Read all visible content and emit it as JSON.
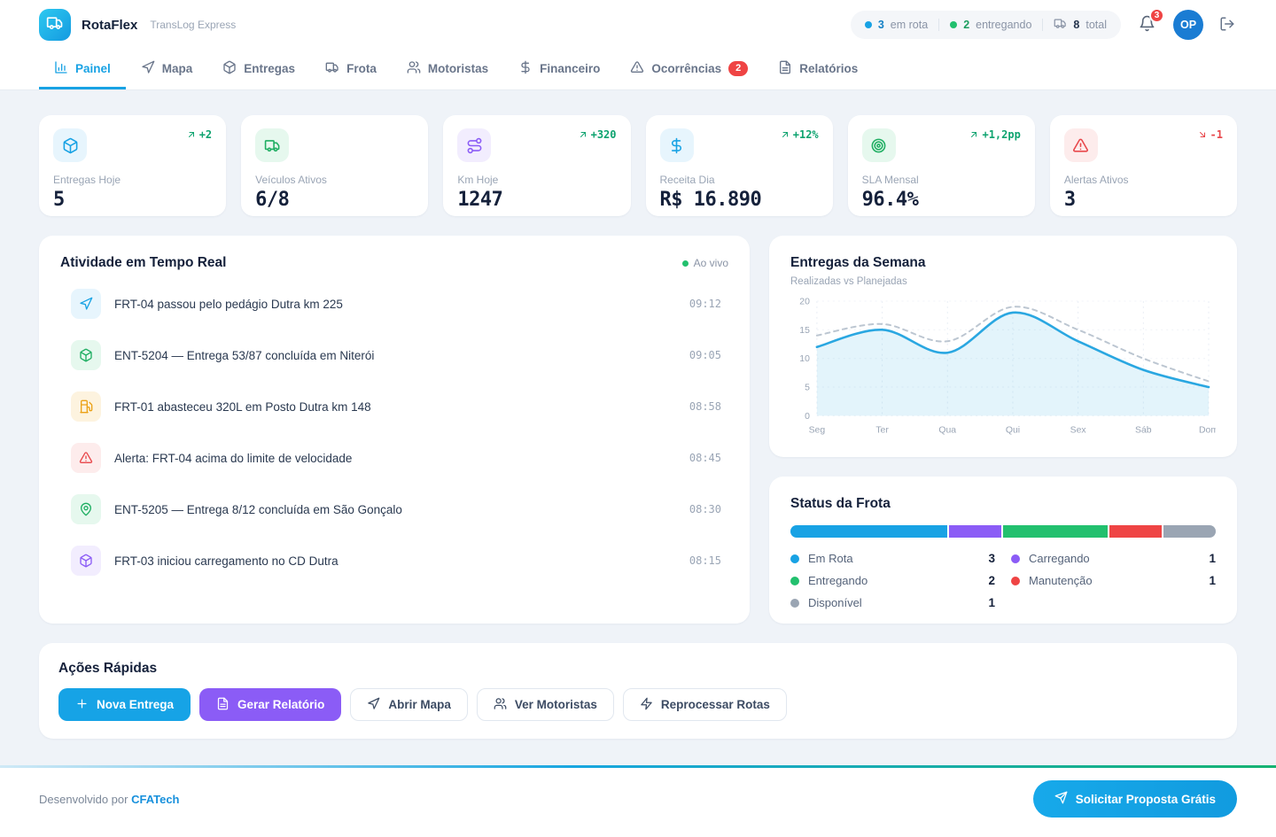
{
  "brand": {
    "name": "RotaFlex",
    "subtitle": "TransLog Express",
    "logo_icon": "truck-icon"
  },
  "header": {
    "status_pill": [
      {
        "dot_color": "#18a2e4",
        "value": "3",
        "label": "em rota",
        "value_color": "#1581c6"
      },
      {
        "dot_color": "#22c06e",
        "value": "2",
        "label": "entregando",
        "value_color": "#1c9e5f"
      },
      {
        "icon": "truck-icon",
        "value": "8",
        "label": "total",
        "value_color": "#25344d"
      }
    ],
    "notifications_count": "3",
    "avatar_initials": "OP"
  },
  "nav": {
    "tabs": [
      {
        "label": "Painel",
        "icon": "bar-chart-icon",
        "active": true
      },
      {
        "label": "Mapa",
        "icon": "navigation-icon"
      },
      {
        "label": "Entregas",
        "icon": "package-icon"
      },
      {
        "label": "Frota",
        "icon": "truck-icon"
      },
      {
        "label": "Motoristas",
        "icon": "users-icon"
      },
      {
        "label": "Financeiro",
        "icon": "dollar-icon"
      },
      {
        "label": "Ocorrências",
        "icon": "alert-triangle-icon",
        "badge": "2"
      },
      {
        "label": "Relatórios",
        "icon": "file-text-icon"
      }
    ]
  },
  "kpis": [
    {
      "icon": "package-icon",
      "tint": "blue",
      "label": "Entregas Hoje",
      "value": "5",
      "trend": "+2",
      "trend_dir": "up"
    },
    {
      "icon": "truck-icon",
      "tint": "green",
      "label": "Veículos Ativos",
      "value": "6/8"
    },
    {
      "icon": "route-icon",
      "tint": "purple",
      "label": "Km Hoje",
      "value": "1247",
      "trend": "+320",
      "trend_dir": "up"
    },
    {
      "icon": "dollar-icon",
      "tint": "blue",
      "label": "Receita Dia",
      "value": "R$ 16.890",
      "trend": "+12%",
      "trend_dir": "up"
    },
    {
      "icon": "target-icon",
      "tint": "green",
      "label": "SLA Mensal",
      "value": "96.4%",
      "trend": "+1,2pp",
      "trend_dir": "up"
    },
    {
      "icon": "alert-triangle-icon",
      "tint": "red",
      "label": "Alertas Ativos",
      "value": "3",
      "trend": "-1",
      "trend_dir": "down"
    }
  ],
  "activity": {
    "title": "Atividade em Tempo Real",
    "live_label": "Ao vivo",
    "items": [
      {
        "icon": "navigation-icon",
        "tint": "blue",
        "text": "FRT-04 passou pelo pedágio Dutra km 225",
        "time": "09:12"
      },
      {
        "icon": "package-icon",
        "tint": "green",
        "text": "ENT-5204 — Entrega 53/87 concluída em Niterói",
        "time": "09:05"
      },
      {
        "icon": "fuel-icon",
        "tint": "amber",
        "text": "FRT-01 abasteceu 320L em Posto Dutra km 148",
        "time": "08:58"
      },
      {
        "icon": "alert-triangle-icon",
        "tint": "red",
        "text": "Alerta: FRT-04 acima do limite de velocidade",
        "time": "08:45"
      },
      {
        "icon": "map-pin-icon",
        "tint": "green",
        "text": "ENT-5205 — Entrega 8/12 concluída em São Gonçalo",
        "time": "08:30"
      },
      {
        "icon": "package-icon",
        "tint": "purple",
        "text": "FRT-03 iniciou carregamento no CD Dutra",
        "time": "08:15"
      }
    ]
  },
  "chart_data": {
    "type": "line",
    "title": "Entregas da Semana",
    "subtitle": "Realizadas vs Planejadas",
    "categories": [
      "Seg",
      "Ter",
      "Qua",
      "Qui",
      "Sex",
      "Sáb",
      "Dom"
    ],
    "series": [
      {
        "name": "Realizadas",
        "values": [
          12,
          15,
          11,
          18,
          13,
          8,
          5
        ],
        "style": "solid",
        "color": "#2aa7e1",
        "area": true
      },
      {
        "name": "Planejadas",
        "values": [
          14,
          16,
          13,
          19,
          15,
          10,
          6
        ],
        "style": "dashed",
        "color": "#bcc6d1"
      }
    ],
    "ylim": [
      0,
      20
    ],
    "yticks": [
      0,
      5,
      10,
      15,
      20
    ],
    "grid": true,
    "legend": "none"
  },
  "fleet": {
    "title": "Status da Frota",
    "total": 8,
    "segments": [
      {
        "label": "Em Rota",
        "value": 3,
        "color": "#18a2e4"
      },
      {
        "label": "Carregando",
        "value": 1,
        "color": "#8b5cf6"
      },
      {
        "label": "Entregando",
        "value": 2,
        "color": "#22c06e"
      },
      {
        "label": "Manutenção",
        "value": 1,
        "color": "#ef4444"
      },
      {
        "label": "Disponível",
        "value": 1,
        "color": "#9aa5b3"
      }
    ]
  },
  "quick_actions": {
    "title": "Ações Rápidas",
    "buttons": [
      {
        "label": "Nova Entrega",
        "icon": "plus-icon",
        "variant": "primary"
      },
      {
        "label": "Gerar Relatório",
        "icon": "file-text-icon",
        "variant": "purple"
      },
      {
        "label": "Abrir Mapa",
        "icon": "navigation-icon",
        "variant": "outline"
      },
      {
        "label": "Ver Motoristas",
        "icon": "users-icon",
        "variant": "outline"
      },
      {
        "label": "Reprocessar Rotas",
        "icon": "zap-icon",
        "variant": "outline"
      }
    ]
  },
  "footer": {
    "dev_prefix": "Desenvolvido por",
    "dev_link": "CFATech",
    "cta_label": "Solicitar Proposta Grátis",
    "cta_icon": "send-icon"
  }
}
